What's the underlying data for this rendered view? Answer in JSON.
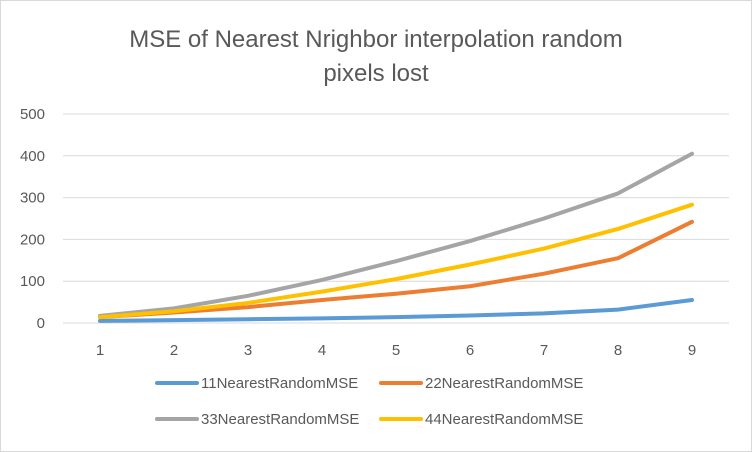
{
  "chart_data": {
    "type": "line",
    "title_lines": [
      "MSE of Nearest Nrighbor interpolation random",
      "pixels lost"
    ],
    "categories": [
      "1",
      "2",
      "3",
      "4",
      "5",
      "6",
      "7",
      "8",
      "9"
    ],
    "ylim": [
      0,
      500
    ],
    "yticks": [
      "0",
      "100",
      "200",
      "300",
      "400",
      "500"
    ],
    "ytick_values": [
      0,
      100,
      200,
      300,
      400,
      500
    ],
    "grid": true,
    "legend_position": "bottom",
    "series": [
      {
        "name": "11NearestRandomMSE",
        "color": "#5B9BD5",
        "values": [
          5,
          7,
          9,
          11,
          14,
          18,
          23,
          32,
          55
        ]
      },
      {
        "name": "22NearestRandomMSE",
        "color": "#ED7D31",
        "values": [
          14,
          25,
          38,
          55,
          70,
          88,
          118,
          155,
          242
        ]
      },
      {
        "name": "33NearestRandomMSE",
        "color": "#A5A5A5",
        "values": [
          17,
          35,
          65,
          103,
          148,
          196,
          250,
          310,
          405
        ]
      },
      {
        "name": "44NearestRandomMSE",
        "color": "#FFC000",
        "values": [
          14,
          28,
          48,
          75,
          105,
          140,
          178,
          225,
          283
        ]
      }
    ]
  }
}
